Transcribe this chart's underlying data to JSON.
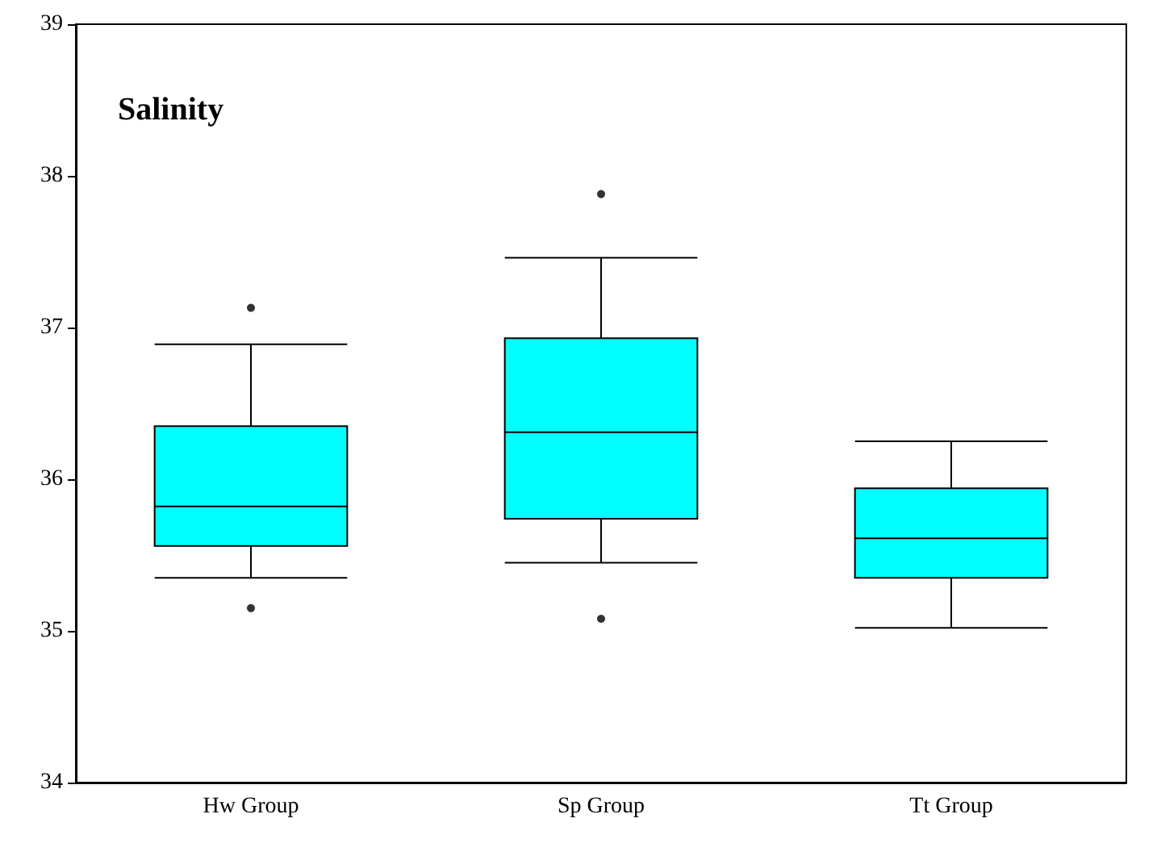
{
  "chart_data": {
    "type": "box",
    "title": "Salinity",
    "categories": [
      "Hw Group",
      "Sp Group",
      "Tt Group"
    ],
    "color": "#00ffff",
    "ylim": [
      34,
      39
    ],
    "yticks": [
      34,
      35,
      36,
      37,
      38,
      39
    ],
    "grid": false,
    "boxes": [
      {
        "low": 35.35,
        "q1": 35.56,
        "median": 35.82,
        "q3": 36.35,
        "high": 36.89,
        "outliers": [
          37.13,
          35.15
        ]
      },
      {
        "low": 35.45,
        "q1": 35.74,
        "median": 36.31,
        "q3": 36.93,
        "high": 37.46,
        "outliers": [
          37.88,
          35.08
        ]
      },
      {
        "low": 35.02,
        "q1": 35.35,
        "median": 35.61,
        "q3": 35.94,
        "high": 36.25
      }
    ]
  }
}
